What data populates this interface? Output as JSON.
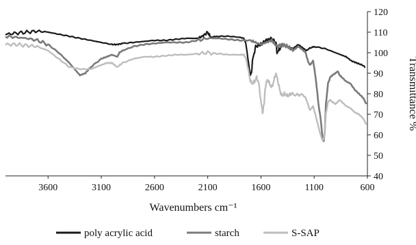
{
  "chart_data": {
    "type": "line",
    "title": "",
    "xlabel": "Wavenumbers cm⁻¹",
    "ylabel": "Transmittance %",
    "xlim": [
      4000,
      600
    ],
    "x_reversed": true,
    "ylim": [
      40,
      120
    ],
    "y_axis_side": "right",
    "xticks": [
      3600,
      3100,
      2600,
      2100,
      1600,
      1100,
      600
    ],
    "xtick_labels": [
      "3600",
      "3100",
      "2600",
      "2100",
      "1600",
      "1100",
      "600"
    ],
    "yticks": [
      40,
      50,
      60,
      70,
      80,
      90,
      100,
      110,
      120
    ],
    "ytick_labels": [
      "40",
      "50",
      "60",
      "70",
      "80",
      "90",
      "100",
      "110",
      "120"
    ],
    "grid": false,
    "legend_position": "bottom",
    "series": [
      {
        "name": "poly acrylic acid",
        "color": "#1a1a1a",
        "points": [
          [
            4000,
            109
          ],
          [
            3900,
            109.5
          ],
          [
            3800,
            110
          ],
          [
            3700,
            110.5
          ],
          [
            3600,
            110
          ],
          [
            3500,
            109
          ],
          [
            3400,
            108
          ],
          [
            3300,
            107
          ],
          [
            3200,
            106
          ],
          [
            3100,
            105
          ],
          [
            3000,
            104
          ],
          [
            2950,
            104
          ],
          [
            2900,
            104.5
          ],
          [
            2800,
            105
          ],
          [
            2700,
            105.5
          ],
          [
            2600,
            106
          ],
          [
            2500,
            106
          ],
          [
            2400,
            106.5
          ],
          [
            2300,
            107
          ],
          [
            2200,
            107
          ],
          [
            2150,
            108
          ],
          [
            2100,
            110
          ],
          [
            2080,
            108
          ],
          [
            2000,
            108
          ],
          [
            1900,
            108
          ],
          [
            1800,
            107.5
          ],
          [
            1760,
            107
          ],
          [
            1740,
            104
          ],
          [
            1720,
            96
          ],
          [
            1700,
            89
          ],
          [
            1690,
            90
          ],
          [
            1680,
            96
          ],
          [
            1650,
            103
          ],
          [
            1600,
            104
          ],
          [
            1550,
            106
          ],
          [
            1500,
            107
          ],
          [
            1460,
            105
          ],
          [
            1450,
            100
          ],
          [
            1420,
            102
          ],
          [
            1400,
            104
          ],
          [
            1350,
            103
          ],
          [
            1300,
            102
          ],
          [
            1250,
            104
          ],
          [
            1200,
            102
          ],
          [
            1170,
            101
          ],
          [
            1150,
            102
          ],
          [
            1100,
            103
          ],
          [
            1000,
            102
          ],
          [
            900,
            100
          ],
          [
            850,
            99
          ],
          [
            800,
            98
          ],
          [
            750,
            96
          ],
          [
            700,
            95
          ],
          [
            650,
            94
          ],
          [
            620,
            93
          ]
        ]
      },
      {
        "name": "starch",
        "color": "#7a7a7a",
        "points": [
          [
            4000,
            108
          ],
          [
            3900,
            107.5
          ],
          [
            3800,
            107
          ],
          [
            3700,
            106
          ],
          [
            3600,
            104
          ],
          [
            3500,
            100
          ],
          [
            3400,
            95
          ],
          [
            3350,
            92
          ],
          [
            3300,
            89
          ],
          [
            3250,
            90
          ],
          [
            3200,
            93
          ],
          [
            3100,
            97
          ],
          [
            3050,
            98
          ],
          [
            3000,
            99
          ],
          [
            2950,
            98
          ],
          [
            2930,
            100
          ],
          [
            2900,
            101
          ],
          [
            2800,
            103
          ],
          [
            2700,
            104
          ],
          [
            2600,
            104.5
          ],
          [
            2500,
            105
          ],
          [
            2400,
            105
          ],
          [
            2300,
            105
          ],
          [
            2200,
            106
          ],
          [
            2100,
            107
          ],
          [
            2000,
            107
          ],
          [
            1900,
            106.5
          ],
          [
            1800,
            106
          ],
          [
            1700,
            106
          ],
          [
            1650,
            105
          ],
          [
            1600,
            104
          ],
          [
            1550,
            105
          ],
          [
            1500,
            106
          ],
          [
            1450,
            103
          ],
          [
            1400,
            104
          ],
          [
            1350,
            103
          ],
          [
            1300,
            101
          ],
          [
            1250,
            103
          ],
          [
            1200,
            101
          ],
          [
            1180,
            100
          ],
          [
            1160,
            96
          ],
          [
            1140,
            94
          ],
          [
            1110,
            96
          ],
          [
            1100,
            93
          ],
          [
            1080,
            85
          ],
          [
            1060,
            75
          ],
          [
            1040,
            68
          ],
          [
            1020,
            58
          ],
          [
            1010,
            57
          ],
          [
            1000,
            62
          ],
          [
            990,
            75
          ],
          [
            970,
            85
          ],
          [
            950,
            88
          ],
          [
            930,
            89
          ],
          [
            900,
            90
          ],
          [
            880,
            91
          ],
          [
            860,
            89
          ],
          [
            840,
            88
          ],
          [
            800,
            86
          ],
          [
            760,
            85
          ],
          [
            720,
            82
          ],
          [
            680,
            80
          ],
          [
            640,
            78
          ],
          [
            610,
            75
          ]
        ]
      },
      {
        "name": "S-SAP",
        "color": "#bdbdbd",
        "points": [
          [
            4000,
            104
          ],
          [
            3900,
            104
          ],
          [
            3800,
            103.5
          ],
          [
            3700,
            103
          ],
          [
            3600,
            101
          ],
          [
            3500,
            97
          ],
          [
            3400,
            93
          ],
          [
            3300,
            92
          ],
          [
            3200,
            92
          ],
          [
            3100,
            94
          ],
          [
            3050,
            95
          ],
          [
            3000,
            95
          ],
          [
            2950,
            93
          ],
          [
            2900,
            95
          ],
          [
            2800,
            97
          ],
          [
            2700,
            98
          ],
          [
            2600,
            98
          ],
          [
            2500,
            98.5
          ],
          [
            2400,
            99
          ],
          [
            2300,
            99
          ],
          [
            2200,
            99.5
          ],
          [
            2100,
            100
          ],
          [
            2000,
            99.5
          ],
          [
            1900,
            99
          ],
          [
            1800,
            99
          ],
          [
            1760,
            99
          ],
          [
            1740,
            97
          ],
          [
            1720,
            92
          ],
          [
            1700,
            86
          ],
          [
            1680,
            85
          ],
          [
            1660,
            86
          ],
          [
            1640,
            88
          ],
          [
            1620,
            85
          ],
          [
            1600,
            76
          ],
          [
            1585,
            71
          ],
          [
            1570,
            75
          ],
          [
            1560,
            83
          ],
          [
            1540,
            87
          ],
          [
            1520,
            85
          ],
          [
            1500,
            83
          ],
          [
            1480,
            86
          ],
          [
            1460,
            90
          ],
          [
            1440,
            86
          ],
          [
            1420,
            81
          ],
          [
            1400,
            79
          ],
          [
            1380,
            80
          ],
          [
            1350,
            79
          ],
          [
            1320,
            80
          ],
          [
            1300,
            80
          ],
          [
            1280,
            79
          ],
          [
            1260,
            80
          ],
          [
            1240,
            79
          ],
          [
            1220,
            80
          ],
          [
            1200,
            79
          ],
          [
            1180,
            78
          ],
          [
            1160,
            75
          ],
          [
            1140,
            72
          ],
          [
            1110,
            74
          ],
          [
            1100,
            72
          ],
          [
            1080,
            68
          ],
          [
            1060,
            64
          ],
          [
            1040,
            60
          ],
          [
            1020,
            57
          ],
          [
            1010,
            58
          ],
          [
            1000,
            62
          ],
          [
            990,
            70
          ],
          [
            970,
            76
          ],
          [
            950,
            77
          ],
          [
            930,
            76
          ],
          [
            900,
            75
          ],
          [
            880,
            76
          ],
          [
            860,
            77
          ],
          [
            840,
            76
          ],
          [
            800,
            74
          ],
          [
            760,
            73
          ],
          [
            720,
            71
          ],
          [
            680,
            70
          ],
          [
            640,
            68
          ],
          [
            610,
            65
          ]
        ]
      }
    ]
  }
}
